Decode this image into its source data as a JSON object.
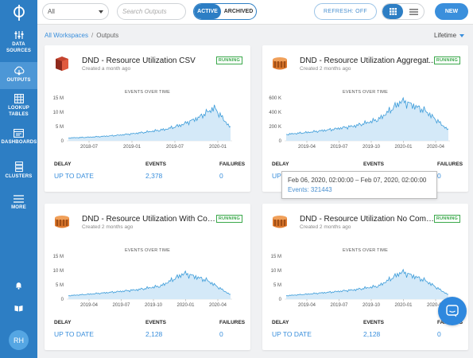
{
  "sidebar": {
    "items": [
      {
        "label": "DATA SOURCES",
        "icon": "data-sources-icon"
      },
      {
        "label": "OUTPUTS",
        "icon": "outputs-icon"
      },
      {
        "label": "LOOKUP TABLES",
        "icon": "lookup-tables-icon"
      },
      {
        "label": "DASHBOARDS",
        "icon": "dashboards-icon"
      },
      {
        "label": "CLUSTERS",
        "icon": "clusters-icon"
      },
      {
        "label": "MORE",
        "icon": "menu-icon"
      }
    ],
    "avatar": "RH"
  },
  "topbar": {
    "filter_value": "All",
    "search_placeholder": "Search Outputs",
    "active_label": "ACTIVE",
    "archived_label": "ARCHIVED",
    "refresh_label": "REFRESH: OFF",
    "new_label": "NEW"
  },
  "breadcrumb": {
    "root": "All Workspaces",
    "separator": "/",
    "current": "Outputs"
  },
  "time_range": "Lifetime",
  "chart_caption": "EVENTS OVER TIME",
  "stat_labels": {
    "delay": "DELAY",
    "events": "EVENTS",
    "failures": "FAILURES"
  },
  "cards": [
    {
      "title": "DND - Resource Utilization CSV",
      "created": "Created a month ago",
      "status": "RUNNING",
      "icon": "aws-s3-icon",
      "delay": "UP TO DATE",
      "events": "2,378",
      "failures": "0"
    },
    {
      "title": "DND - Resource Utilization Aggregat...",
      "created": "Created 2 months ago",
      "status": "RUNNING",
      "icon": "aws-redshift-icon",
      "delay": "UP TO DATE",
      "events": "",
      "failures": "0"
    },
    {
      "title": "DND - Resource Utilization With Comp...",
      "created": "Created 2 months ago",
      "status": "RUNNING",
      "icon": "aws-redshift-icon",
      "delay": "UP TO DATE",
      "events": "2,128",
      "failures": "0"
    },
    {
      "title": "DND - Resource Utilization No Comp...",
      "created": "Created 2 months ago",
      "status": "RUNNING",
      "icon": "aws-redshift-icon",
      "delay": "UP TO DATE",
      "events": "2,128",
      "failures": "0"
    }
  ],
  "tooltip": {
    "range": "Feb 06, 2020, 02:00:00 – Feb 07, 2020, 02:00:00",
    "events": "Events: 321443"
  },
  "colors": {
    "sidebar": "#2d7ec4",
    "accent": "#3a8fdc",
    "running": "#3aa84a",
    "series_line": "#3a9bd9",
    "series_fill": "#d4e9f8"
  },
  "chart_data": [
    {
      "type": "area",
      "x": [
        "2018-01",
        "2018-04",
        "2018-07",
        "2018-10",
        "2019-01",
        "2019-04",
        "2019-07",
        "2019-10",
        "2020-01",
        "2020-02",
        "2020-03"
      ],
      "values": [
        1.0,
        1.2,
        1.5,
        1.9,
        2.5,
        3.2,
        4.0,
        5.6,
        8.0,
        11.5,
        4.5
      ],
      "x_ticks": [
        "2018-07",
        "2019-01",
        "2019-07",
        "2020-01"
      ],
      "y_ticks": [
        "0",
        "5 M",
        "10 M",
        "15 M"
      ],
      "ylim": [
        0,
        15000000
      ]
    },
    {
      "type": "area",
      "x": [
        "2019-01",
        "2019-04",
        "2019-07",
        "2019-10",
        "2020-01",
        "2020-02",
        "2020-04",
        "2020-05"
      ],
      "values": [
        90,
        120,
        160,
        210,
        300,
        560,
        420,
        150
      ],
      "x_ticks": [
        "2019-04",
        "2019-07",
        "2019-10",
        "2020-01",
        "2020-04"
      ],
      "y_ticks": [
        "0",
        "200 K",
        "400 K",
        "600 K"
      ],
      "ylim": [
        0,
        600000
      ]
    },
    {
      "type": "area",
      "x": [
        "2019-01",
        "2019-04",
        "2019-07",
        "2019-10",
        "2020-01",
        "2020-02",
        "2020-04",
        "2020-05"
      ],
      "values": [
        1.2,
        1.8,
        2.5,
        3.3,
        4.6,
        9.0,
        6.5,
        1.5
      ],
      "x_ticks": [
        "2019-04",
        "2019-07",
        "2019-10",
        "2020-01",
        "2020-04"
      ],
      "y_ticks": [
        "0",
        "5 M",
        "10 M",
        "15 M"
      ],
      "ylim": [
        0,
        15000000
      ]
    },
    {
      "type": "area",
      "x": [
        "2019-01",
        "2019-04",
        "2019-07",
        "2019-10",
        "2020-01",
        "2020-02",
        "2020-04",
        "2020-05"
      ],
      "values": [
        1.2,
        1.8,
        2.5,
        3.3,
        4.6,
        9.5,
        6.5,
        1.5
      ],
      "x_ticks": [
        "2019-04",
        "2019-07",
        "2019-10",
        "2020-01",
        "2020-04"
      ],
      "y_ticks": [
        "0",
        "5 M",
        "10 M",
        "15 M"
      ],
      "ylim": [
        0,
        15000000
      ]
    }
  ]
}
